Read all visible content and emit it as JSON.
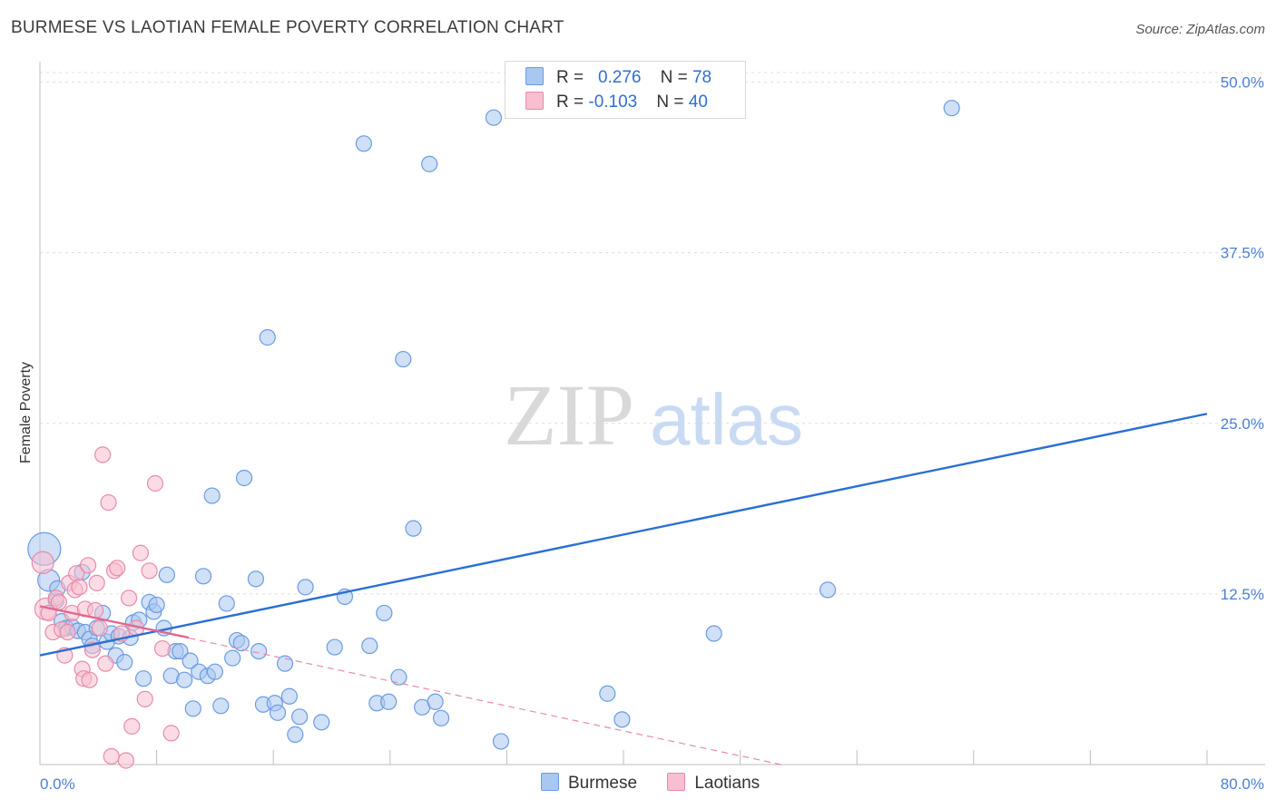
{
  "title": "BURMESE VS LAOTIAN FEMALE POVERTY CORRELATION CHART",
  "source": "Source: ZipAtlas.com",
  "watermark": {
    "zip": "ZIP",
    "atlas": "atlas"
  },
  "legend_stats": [
    {
      "r_label": "R = ",
      "r_value": "0.276",
      "n_label": "N = ",
      "n_value": "78",
      "color": "#a9c7f0",
      "border": "#6b9be0"
    },
    {
      "r_label": "R = ",
      "r_value": "-0.103",
      "n_label": "N = ",
      "n_value": "40",
      "color": "#f7bfd0",
      "border": "#e88aa8"
    }
  ],
  "bottom_legend": [
    {
      "label": "Burmese",
      "color": "#a9c7f0",
      "border": "#6b9be0"
    },
    {
      "label": "Laotians",
      "color": "#f7bfd0",
      "border": "#e88aa8"
    }
  ],
  "chart_data": {
    "type": "scatter",
    "title": "BURMESE VS LAOTIAN FEMALE POVERTY CORRELATION CHART",
    "xlabel": "",
    "ylabel": "Female Poverty",
    "xlim": [
      0,
      80
    ],
    "ylim": [
      0,
      51.5
    ],
    "x_tick_labels": [
      "0.0%",
      "80.0%"
    ],
    "y_ticks": [
      12.5,
      25.0,
      37.5,
      50.0
    ],
    "y_tick_labels": [
      "12.5%",
      "25.0%",
      "37.5%",
      "50.0%"
    ],
    "grid": true,
    "legend_position": "top-center",
    "series": [
      {
        "name": "Burmese",
        "color": "#6b9be0",
        "fill": "#a9c7f0",
        "trend": {
          "x": [
            0,
            80
          ],
          "y": [
            8.0,
            25.7
          ],
          "style": "solid"
        },
        "points": [
          {
            "x": 0.3,
            "y": 15.8,
            "r": 18
          },
          {
            "x": 0.6,
            "y": 13.5,
            "r": 12
          },
          {
            "x": 1.1,
            "y": 12.0
          },
          {
            "x": 1.2,
            "y": 12.9
          },
          {
            "x": 1.5,
            "y": 10.5
          },
          {
            "x": 1.8,
            "y": 10.0
          },
          {
            "x": 2.2,
            "y": 10.1
          },
          {
            "x": 2.6,
            "y": 9.8
          },
          {
            "x": 2.9,
            "y": 14.1
          },
          {
            "x": 3.1,
            "y": 9.7
          },
          {
            "x": 3.4,
            "y": 9.2
          },
          {
            "x": 3.6,
            "y": 8.7
          },
          {
            "x": 3.9,
            "y": 10.0
          },
          {
            "x": 4.3,
            "y": 11.1
          },
          {
            "x": 4.6,
            "y": 9.0
          },
          {
            "x": 4.9,
            "y": 9.6
          },
          {
            "x": 5.2,
            "y": 8.0
          },
          {
            "x": 5.4,
            "y": 9.4
          },
          {
            "x": 5.8,
            "y": 7.5
          },
          {
            "x": 6.2,
            "y": 9.3
          },
          {
            "x": 6.4,
            "y": 10.4
          },
          {
            "x": 6.8,
            "y": 10.6
          },
          {
            "x": 7.1,
            "y": 6.3
          },
          {
            "x": 7.5,
            "y": 11.9
          },
          {
            "x": 7.8,
            "y": 11.2
          },
          {
            "x": 8.0,
            "y": 11.7
          },
          {
            "x": 8.5,
            "y": 10.0
          },
          {
            "x": 8.7,
            "y": 13.9
          },
          {
            "x": 9.0,
            "y": 6.5
          },
          {
            "x": 9.3,
            "y": 8.3
          },
          {
            "x": 9.6,
            "y": 8.3
          },
          {
            "x": 9.9,
            "y": 6.2
          },
          {
            "x": 10.3,
            "y": 7.6
          },
          {
            "x": 10.5,
            "y": 4.1
          },
          {
            "x": 10.9,
            "y": 6.8
          },
          {
            "x": 11.2,
            "y": 13.8
          },
          {
            "x": 11.5,
            "y": 6.5
          },
          {
            "x": 11.8,
            "y": 19.7
          },
          {
            "x": 12.0,
            "y": 6.8
          },
          {
            "x": 12.4,
            "y": 4.3
          },
          {
            "x": 12.8,
            "y": 11.8
          },
          {
            "x": 13.2,
            "y": 7.8
          },
          {
            "x": 13.5,
            "y": 9.1
          },
          {
            "x": 13.8,
            "y": 8.9
          },
          {
            "x": 14.0,
            "y": 21.0
          },
          {
            "x": 14.8,
            "y": 13.6
          },
          {
            "x": 15.0,
            "y": 8.3
          },
          {
            "x": 15.3,
            "y": 4.4
          },
          {
            "x": 15.6,
            "y": 31.3
          },
          {
            "x": 16.1,
            "y": 4.5
          },
          {
            "x": 16.3,
            "y": 3.8
          },
          {
            "x": 16.8,
            "y": 7.4
          },
          {
            "x": 17.1,
            "y": 5.0
          },
          {
            "x": 17.5,
            "y": 2.2
          },
          {
            "x": 17.8,
            "y": 3.5
          },
          {
            "x": 18.2,
            "y": 13.0
          },
          {
            "x": 19.3,
            "y": 3.1
          },
          {
            "x": 20.2,
            "y": 8.6
          },
          {
            "x": 20.9,
            "y": 12.3
          },
          {
            "x": 22.2,
            "y": 45.5
          },
          {
            "x": 22.6,
            "y": 8.7
          },
          {
            "x": 23.1,
            "y": 4.5
          },
          {
            "x": 23.6,
            "y": 11.1
          },
          {
            "x": 23.9,
            "y": 4.6
          },
          {
            "x": 24.6,
            "y": 6.4
          },
          {
            "x": 24.9,
            "y": 29.7
          },
          {
            "x": 25.6,
            "y": 17.3
          },
          {
            "x": 26.2,
            "y": 4.2
          },
          {
            "x": 26.7,
            "y": 44.0
          },
          {
            "x": 27.1,
            "y": 4.6
          },
          {
            "x": 27.5,
            "y": 3.4
          },
          {
            "x": 31.1,
            "y": 47.4
          },
          {
            "x": 31.6,
            "y": 1.7
          },
          {
            "x": 38.9,
            "y": 5.2
          },
          {
            "x": 39.9,
            "y": 3.3
          },
          {
            "x": 46.2,
            "y": 9.6
          },
          {
            "x": 54.0,
            "y": 12.8
          },
          {
            "x": 62.5,
            "y": 48.1
          }
        ]
      },
      {
        "name": "Laotians",
        "color": "#e88aa8",
        "fill": "#f7bfd0",
        "trend": {
          "x": [
            0,
            10.2
          ],
          "y": [
            11.6,
            9.3
          ],
          "style": "solid",
          "extended": {
            "x": [
              0,
              50.8
            ],
            "y": [
              11.6,
              0.0
            ],
            "style": "dashed"
          }
        },
        "points": [
          {
            "x": 0.2,
            "y": 14.8,
            "r": 12
          },
          {
            "x": 0.4,
            "y": 11.4,
            "r": 12
          },
          {
            "x": 0.6,
            "y": 11.1
          },
          {
            "x": 0.9,
            "y": 9.7
          },
          {
            "x": 1.1,
            "y": 12.2
          },
          {
            "x": 1.3,
            "y": 11.9
          },
          {
            "x": 1.5,
            "y": 9.9
          },
          {
            "x": 1.7,
            "y": 8.0
          },
          {
            "x": 1.9,
            "y": 9.7
          },
          {
            "x": 2.0,
            "y": 13.3
          },
          {
            "x": 2.2,
            "y": 11.1
          },
          {
            "x": 2.4,
            "y": 12.8
          },
          {
            "x": 2.5,
            "y": 14.0
          },
          {
            "x": 2.7,
            "y": 13.0
          },
          {
            "x": 2.9,
            "y": 7.0
          },
          {
            "x": 3.0,
            "y": 6.3
          },
          {
            "x": 3.1,
            "y": 11.4
          },
          {
            "x": 3.3,
            "y": 14.6
          },
          {
            "x": 3.4,
            "y": 6.2
          },
          {
            "x": 3.6,
            "y": 8.4
          },
          {
            "x": 3.8,
            "y": 11.3
          },
          {
            "x": 3.9,
            "y": 13.3
          },
          {
            "x": 4.1,
            "y": 10.0
          },
          {
            "x": 4.3,
            "y": 22.7
          },
          {
            "x": 4.5,
            "y": 7.4
          },
          {
            "x": 4.7,
            "y": 19.2
          },
          {
            "x": 4.9,
            "y": 0.6
          },
          {
            "x": 5.1,
            "y": 14.2
          },
          {
            "x": 5.3,
            "y": 14.4
          },
          {
            "x": 5.6,
            "y": 9.6
          },
          {
            "x": 5.9,
            "y": 0.3
          },
          {
            "x": 6.1,
            "y": 12.2
          },
          {
            "x": 6.3,
            "y": 2.8
          },
          {
            "x": 6.6,
            "y": 10.0
          },
          {
            "x": 6.9,
            "y": 15.5
          },
          {
            "x": 7.2,
            "y": 4.8
          },
          {
            "x": 7.5,
            "y": 14.2
          },
          {
            "x": 7.9,
            "y": 20.6
          },
          {
            "x": 8.4,
            "y": 8.5
          },
          {
            "x": 9.0,
            "y": 2.3
          }
        ]
      }
    ]
  }
}
